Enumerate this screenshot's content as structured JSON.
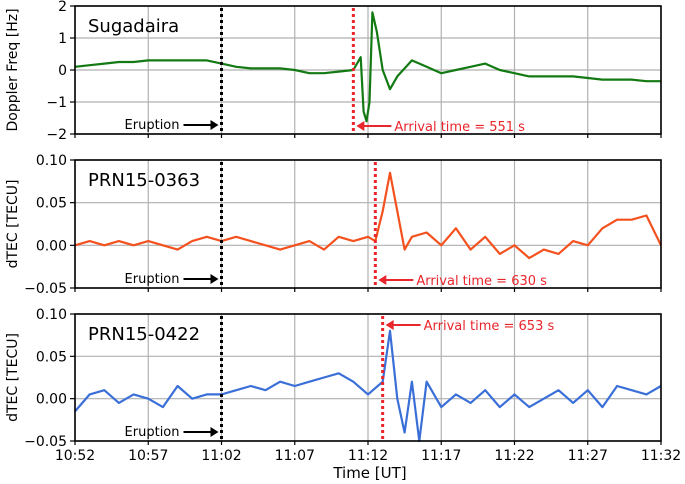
{
  "chart_data": {
    "type": "line",
    "xlabel": "Time [UT]",
    "x_ticks": [
      "10:52",
      "10:57",
      "11:02",
      "11:07",
      "11:12",
      "11:17",
      "11:22",
      "11:27",
      "11:32"
    ],
    "xlim": [
      "10:52",
      "11:32"
    ],
    "grid": true,
    "panels": [
      {
        "title": "Sugadaira",
        "ylabel": "Doppler Freq [Hz]",
        "ylim": [
          -2,
          2
        ],
        "yticks": [
          -2,
          -1,
          0,
          1,
          2
        ],
        "color": "#137a13",
        "eruption_time": "11:02",
        "eruption_label": "Eruption",
        "arrival_time": "11:11",
        "arrival_label": "Arrival time = 551 s",
        "series": [
          {
            "x": [
              "10:52",
              "10:53",
              "10:54",
              "10:55",
              "10:56",
              "10:57",
              "10:58",
              "10:59",
              "11:00",
              "11:01",
              "11:02",
              "11:03",
              "11:04",
              "11:05",
              "11:06",
              "11:07",
              "11:08",
              "11:09",
              "11:10",
              "11:11",
              "11:11.5",
              "11:11.7",
              "11:11.9",
              "11:12.1",
              "11:12.3",
              "11:12.6",
              "11:13",
              "11:13.5",
              "11:14",
              "11:15",
              "11:16",
              "11:17",
              "11:18",
              "11:19",
              "11:20",
              "11:21",
              "11:22",
              "11:23",
              "11:24",
              "11:25",
              "11:26",
              "11:27",
              "11:28",
              "11:29",
              "11:30",
              "11:31",
              "11:32"
            ],
            "y": [
              0.1,
              0.15,
              0.2,
              0.25,
              0.25,
              0.3,
              0.3,
              0.3,
              0.3,
              0.3,
              0.2,
              0.1,
              0.05,
              0.05,
              0.05,
              0.0,
              -0.1,
              -0.1,
              -0.05,
              0.0,
              0.4,
              -1.3,
              -1.6,
              -1.0,
              1.8,
              1.2,
              0.0,
              -0.6,
              -0.2,
              0.3,
              0.1,
              -0.1,
              0.0,
              0.1,
              0.2,
              0.0,
              -0.1,
              -0.2,
              -0.2,
              -0.2,
              -0.2,
              -0.25,
              -0.3,
              -0.3,
              -0.3,
              -0.35,
              -0.35
            ]
          }
        ]
      },
      {
        "title": "PRN15-0363",
        "ylabel": "dTEC [TECU]",
        "ylim": [
          -0.05,
          0.1
        ],
        "yticks": [
          -0.05,
          0.0,
          0.05,
          0.1
        ],
        "ytick_labels": [
          "−0.05",
          "0.00",
          "0.05",
          "0.10"
        ],
        "color": "#f4511e",
        "eruption_time": "11:02",
        "eruption_label": "Eruption",
        "arrival_time": "11:12.5",
        "arrival_label": "Arrival time = 630 s",
        "series": [
          {
            "x": [
              "10:52",
              "10:53",
              "10:54",
              "10:55",
              "10:56",
              "10:57",
              "10:58",
              "10:59",
              "11:00",
              "11:01",
              "11:02",
              "11:03",
              "11:04",
              "11:05",
              "11:06",
              "11:07",
              "11:08",
              "11:09",
              "11:10",
              "11:11",
              "11:12",
              "11:12.5",
              "11:13",
              "11:13.5",
              "11:14",
              "11:14.5",
              "11:15",
              "11:16",
              "11:17",
              "11:18",
              "11:19",
              "11:20",
              "11:21",
              "11:22",
              "11:23",
              "11:24",
              "11:25",
              "11:26",
              "11:27",
              "11:28",
              "11:29",
              "11:30",
              "11:31",
              "11:32"
            ],
            "y": [
              0.0,
              0.005,
              0.0,
              0.005,
              0.0,
              0.005,
              0.0,
              -0.005,
              0.005,
              0.01,
              0.005,
              0.01,
              0.005,
              0.0,
              -0.005,
              0.0,
              0.005,
              -0.005,
              0.01,
              0.005,
              0.01,
              0.005,
              0.04,
              0.085,
              0.04,
              -0.005,
              0.01,
              0.015,
              0.0,
              0.02,
              -0.005,
              0.01,
              -0.01,
              0.0,
              -0.015,
              -0.005,
              -0.01,
              0.005,
              0.0,
              0.02,
              0.03,
              0.03,
              0.035,
              0.0
            ]
          }
        ]
      },
      {
        "title": "PRN15-0422",
        "ylabel": "dTEC [TECU]",
        "ylim": [
          -0.05,
          0.1
        ],
        "yticks": [
          -0.05,
          0.0,
          0.05,
          0.1
        ],
        "ytick_labels": [
          "−0.05",
          "0.00",
          "0.05",
          "0.10"
        ],
        "color": "#3a6fd8",
        "eruption_time": "11:02",
        "eruption_label": "Eruption",
        "arrival_time": "11:13",
        "arrival_label": "Arrival time = 653 s",
        "series": [
          {
            "x": [
              "10:52",
              "10:53",
              "10:54",
              "10:55",
              "10:56",
              "10:57",
              "10:58",
              "10:59",
              "11:00",
              "11:01",
              "11:02",
              "11:03",
              "11:04",
              "11:05",
              "11:06",
              "11:07",
              "11:08",
              "11:09",
              "11:10",
              "11:11",
              "11:12",
              "11:13",
              "11:13.5",
              "11:14",
              "11:14.5",
              "11:15",
              "11:15.5",
              "11:16",
              "11:17",
              "11:18",
              "11:19",
              "11:20",
              "11:21",
              "11:22",
              "11:23",
              "11:24",
              "11:25",
              "11:26",
              "11:27",
              "11:28",
              "11:29",
              "11:30",
              "11:31",
              "11:32"
            ],
            "y": [
              -0.015,
              0.005,
              0.01,
              -0.005,
              0.005,
              0.0,
              -0.01,
              0.015,
              0.0,
              0.005,
              0.005,
              0.01,
              0.015,
              0.01,
              0.02,
              0.015,
              0.02,
              0.025,
              0.03,
              0.02,
              0.005,
              0.02,
              0.08,
              0.0,
              -0.04,
              0.02,
              -0.05,
              0.02,
              -0.01,
              0.005,
              -0.005,
              0.01,
              -0.01,
              0.005,
              -0.01,
              0.0,
              0.01,
              -0.005,
              0.01,
              -0.01,
              0.015,
              0.01,
              0.005,
              0.015
            ]
          }
        ]
      }
    ]
  }
}
